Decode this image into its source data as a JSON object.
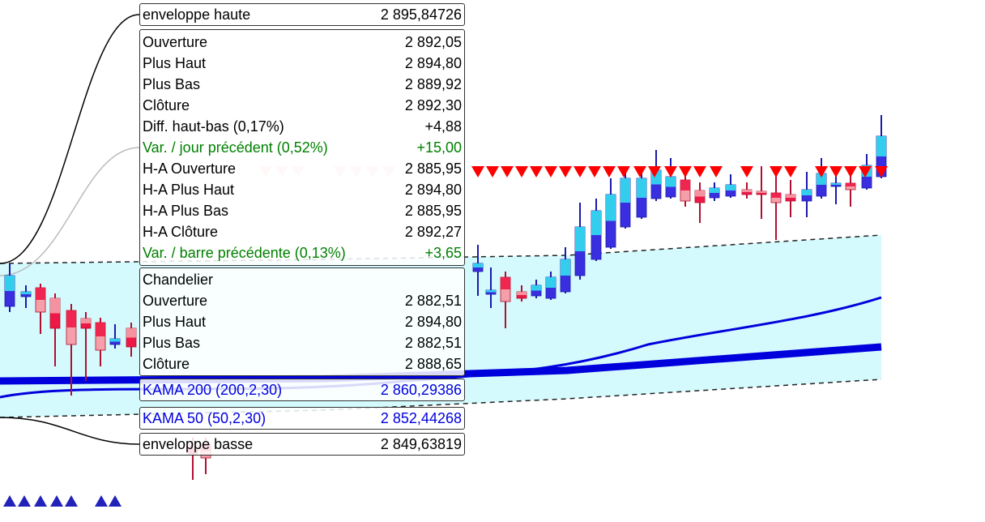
{
  "tooltips": {
    "envelope_high": {
      "label": "enveloppe haute",
      "value": "2 895,84726"
    },
    "ohlc": [
      {
        "label": "Ouverture",
        "value": "2 892,05"
      },
      {
        "label": "Plus Haut",
        "value": "2 894,80"
      },
      {
        "label": "Plus Bas",
        "value": "2 889,92"
      },
      {
        "label": "Clôture",
        "value": "2 892,30"
      },
      {
        "label": "Diff. haut-bas (0,17%)",
        "value": "+4,88"
      },
      {
        "label": "Var. / jour précédent (0,52%)",
        "value": "+15,00",
        "color": "#008000"
      },
      {
        "label": "H-A Ouverture",
        "value": "2 885,95"
      },
      {
        "label": "H-A Plus Haut",
        "value": "2 894,80"
      },
      {
        "label": "H-A Plus Bas",
        "value": "2 885,95"
      },
      {
        "label": "H-A Clôture",
        "value": "2 892,27"
      },
      {
        "label": "Var. / barre précédente (0,13%)",
        "value": "+3,65",
        "color": "#008000"
      }
    ],
    "chandelier": {
      "title": "Chandelier",
      "rows": [
        {
          "label": "Ouverture",
          "value": "2 882,51"
        },
        {
          "label": "Plus Haut",
          "value": "2 894,80"
        },
        {
          "label": "Plus Bas",
          "value": "2 882,51"
        },
        {
          "label": "Clôture",
          "value": "2 888,65"
        }
      ]
    },
    "kama200": {
      "label": "KAMA 200 (200,2,30)",
      "value": "2 860,29386",
      "color": "#0000dd"
    },
    "kama50": {
      "label": "KAMA 50 (50,2,30)",
      "value": "2 852,44268",
      "color": "#0000dd"
    },
    "envelope_low": {
      "label": "enveloppe basse",
      "value": "2 849,63819"
    }
  }
}
